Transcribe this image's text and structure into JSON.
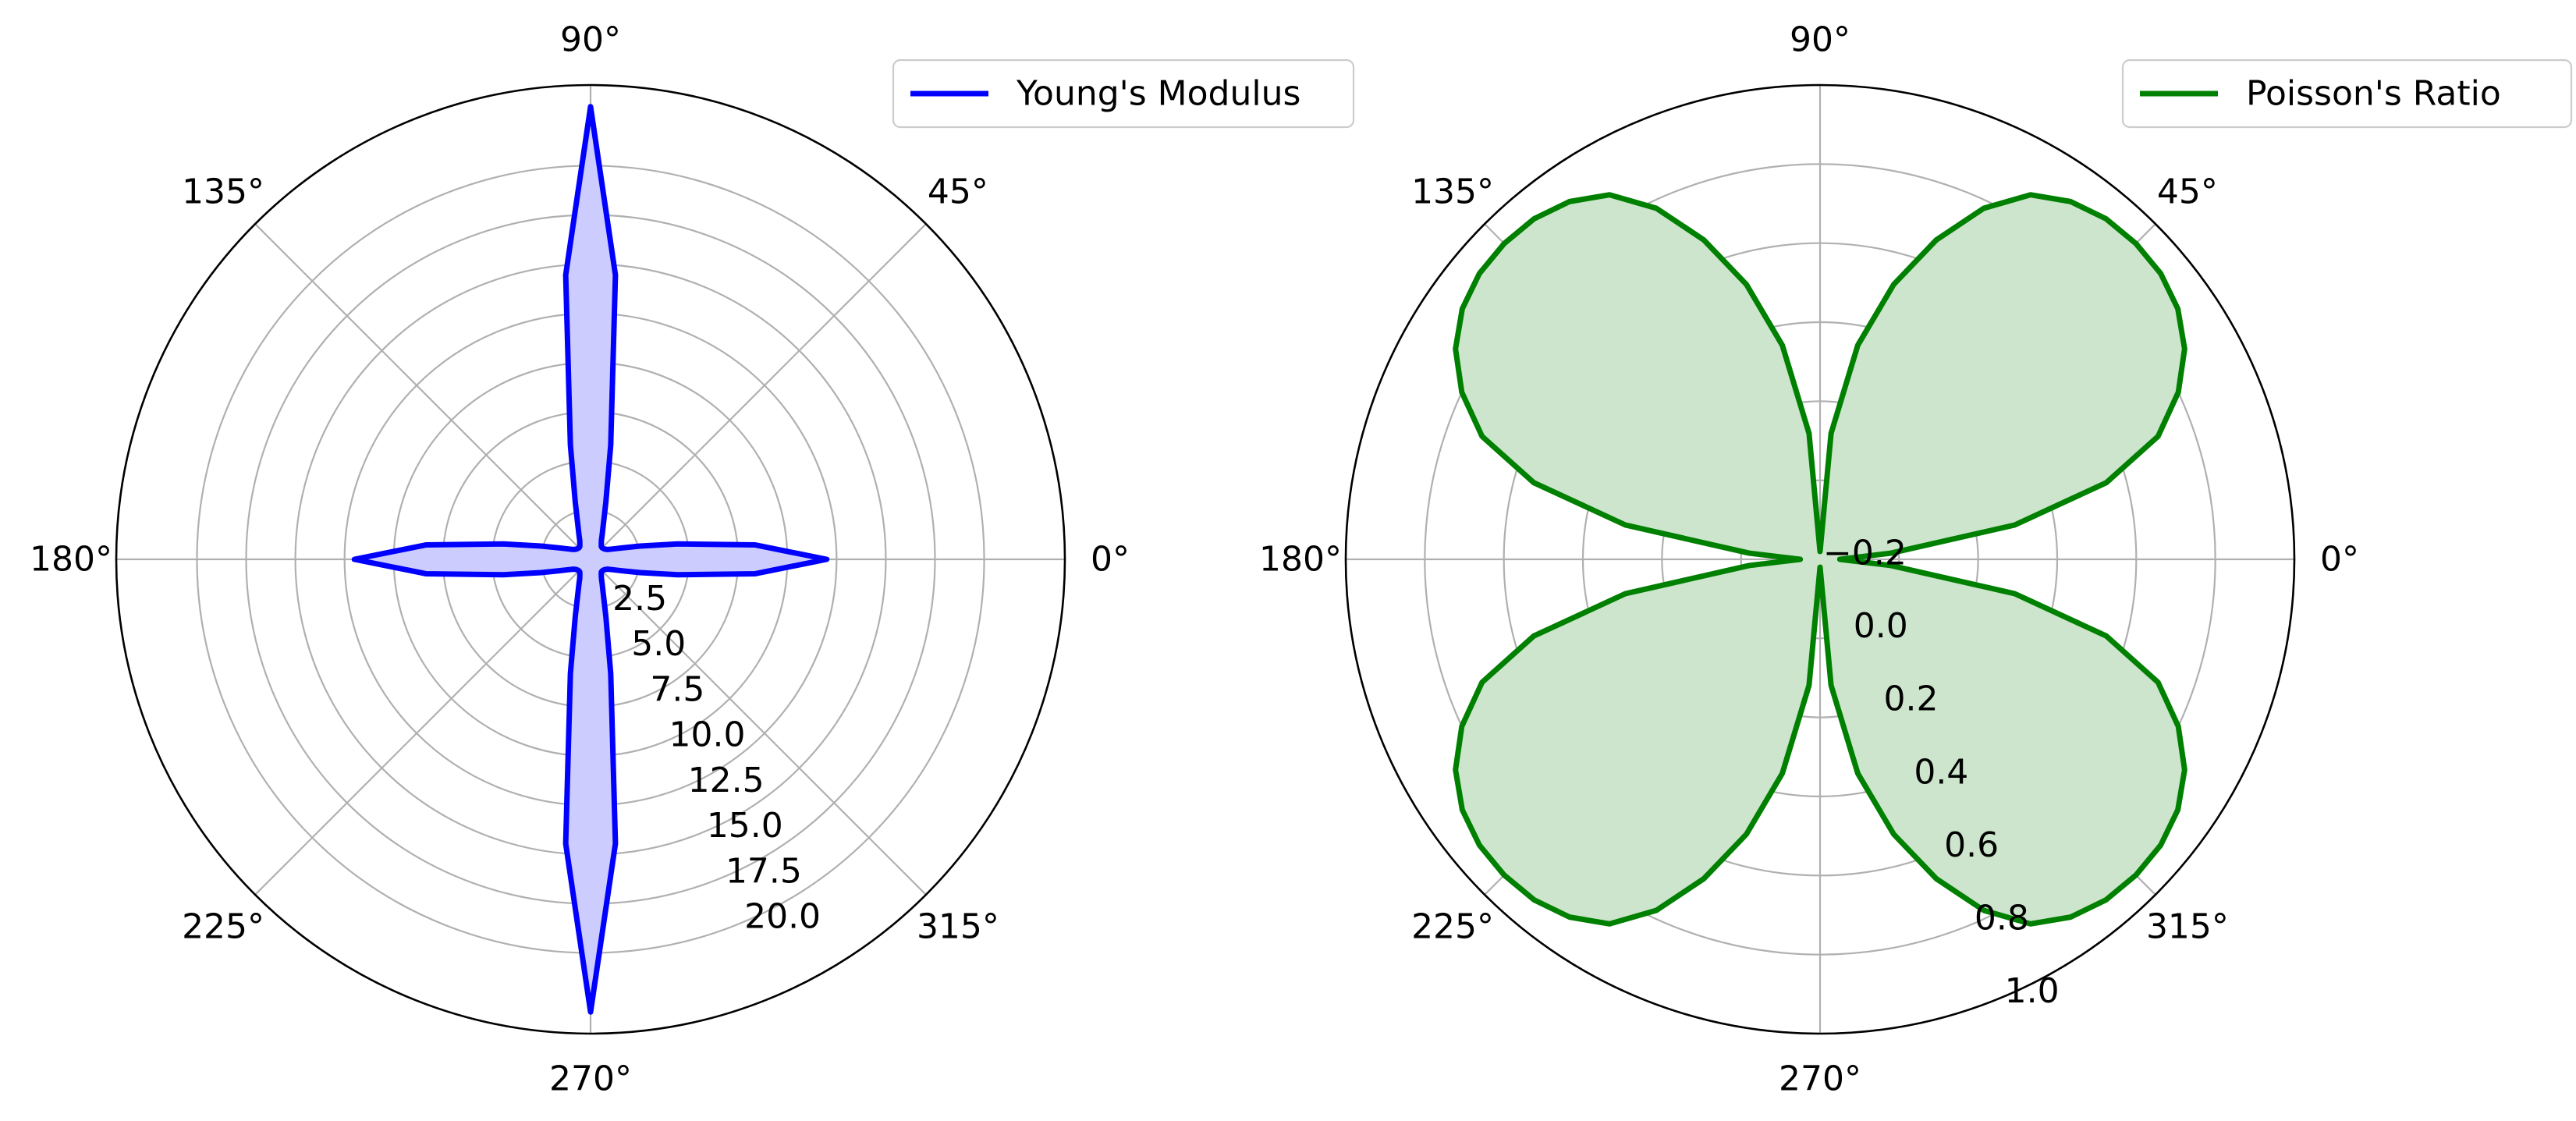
{
  "chart_data": [
    {
      "type": "polar",
      "series": [
        {
          "name": "Young's Modulus",
          "theta_deg": [
            0,
            5,
            10,
            15,
            20,
            25,
            30,
            35,
            40,
            45,
            50,
            55,
            60,
            65,
            70,
            75,
            80,
            85,
            90,
            95,
            100,
            105,
            110,
            115,
            120,
            125,
            130,
            135,
            140,
            145,
            150,
            155,
            160,
            165,
            170,
            175,
            180,
            185,
            190,
            195,
            200,
            205,
            210,
            215,
            220,
            225,
            230,
            235,
            240,
            245,
            250,
            255,
            260,
            265,
            270,
            275,
            280,
            285,
            290,
            295,
            300,
            305,
            310,
            315,
            320,
            325,
            330,
            335,
            340,
            345,
            350,
            355,
            360
          ],
          "r": [
            12.0,
            8.4,
            4.5,
            2.6,
            1.7,
            1.25,
            1.0,
            0.9,
            0.85,
            0.83,
            0.85,
            0.95,
            1.1,
            1.4,
            1.9,
            3.0,
            5.9,
            14.5,
            23.0,
            14.5,
            5.9,
            3.0,
            1.9,
            1.4,
            1.1,
            0.95,
            0.85,
            0.83,
            0.85,
            0.9,
            1.0,
            1.25,
            1.7,
            2.6,
            4.5,
            8.4,
            12.0,
            8.4,
            4.5,
            2.6,
            1.7,
            1.25,
            1.0,
            0.9,
            0.85,
            0.83,
            0.85,
            0.95,
            1.1,
            1.4,
            1.9,
            3.0,
            5.9,
            14.5,
            23.0,
            14.5,
            5.9,
            3.0,
            1.9,
            1.4,
            1.1,
            0.95,
            0.85,
            0.83,
            0.85,
            0.9,
            1.0,
            1.25,
            1.7,
            2.6,
            4.5,
            8.4,
            12.0
          ],
          "color": "#0000ff",
          "fill": "#ccccff"
        }
      ],
      "r_ticks": [
        2.5,
        5.0,
        7.5,
        10.0,
        12.5,
        15.0,
        17.5,
        20.0
      ],
      "r_tick_labels": [
        "2.5",
        "5.0",
        "7.5",
        "10.0",
        "12.5",
        "15.0",
        "17.5",
        "20.0"
      ],
      "rlim": [
        0,
        24.1
      ],
      "theta_tick_labels": [
        "0°",
        "45°",
        "90°",
        "135°",
        "180°",
        "225°",
        "270°",
        "315°"
      ],
      "grid": true,
      "legend": "upper-right"
    },
    {
      "type": "polar",
      "series": [
        {
          "name": "Poisson's Ratio",
          "theta_deg": [
            0,
            5,
            10,
            15,
            20,
            25,
            30,
            35,
            40,
            45,
            50,
            55,
            60,
            65,
            70,
            75,
            80,
            85,
            90,
            95,
            100,
            105,
            110,
            115,
            120,
            125,
            130,
            135,
            140,
            145,
            150,
            155,
            160,
            165,
            170,
            175,
            180,
            185,
            190,
            195,
            200,
            205,
            210,
            215,
            220,
            225,
            230,
            235,
            240,
            245,
            250,
            255,
            260,
            265,
            270,
            275,
            280,
            285,
            290,
            295,
            300,
            305,
            310,
            315,
            320,
            325,
            330,
            335,
            340,
            345,
            350,
            355,
            360
          ],
          "r": [
            -0.15,
            -0.02,
            0.3,
            0.55,
            0.71,
            0.8,
            0.865,
            0.905,
            0.925,
            0.93,
            0.925,
            0.905,
            0.865,
            0.78,
            0.66,
            0.52,
            0.35,
            0.12,
            -0.18,
            0.12,
            0.35,
            0.52,
            0.66,
            0.78,
            0.865,
            0.905,
            0.925,
            0.93,
            0.925,
            0.905,
            0.865,
            0.8,
            0.71,
            0.55,
            0.3,
            -0.02,
            -0.15,
            -0.02,
            0.3,
            0.55,
            0.71,
            0.8,
            0.865,
            0.905,
            0.925,
            0.93,
            0.925,
            0.905,
            0.865,
            0.78,
            0.66,
            0.52,
            0.35,
            0.12,
            -0.18,
            0.12,
            0.35,
            0.52,
            0.66,
            0.78,
            0.865,
            0.905,
            0.925,
            0.93,
            0.925,
            0.905,
            0.865,
            0.8,
            0.71,
            0.55,
            0.3,
            -0.02,
            -0.15
          ],
          "color": "#008000",
          "fill": "#cce5cc"
        }
      ],
      "r_ticks": [
        -0.2,
        0.0,
        0.2,
        0.4,
        0.6,
        0.8,
        1.0
      ],
      "r_tick_labels": [
        "−0.2",
        "0.0",
        "0.2",
        "0.4",
        "0.6",
        "0.8",
        "1.0"
      ],
      "rlim": [
        -0.2,
        1.0
      ],
      "theta_tick_labels": [
        "0°",
        "45°",
        "90°",
        "135°",
        "180°",
        "225°",
        "270°",
        "315°"
      ],
      "grid": true,
      "legend": "upper-right"
    }
  ]
}
